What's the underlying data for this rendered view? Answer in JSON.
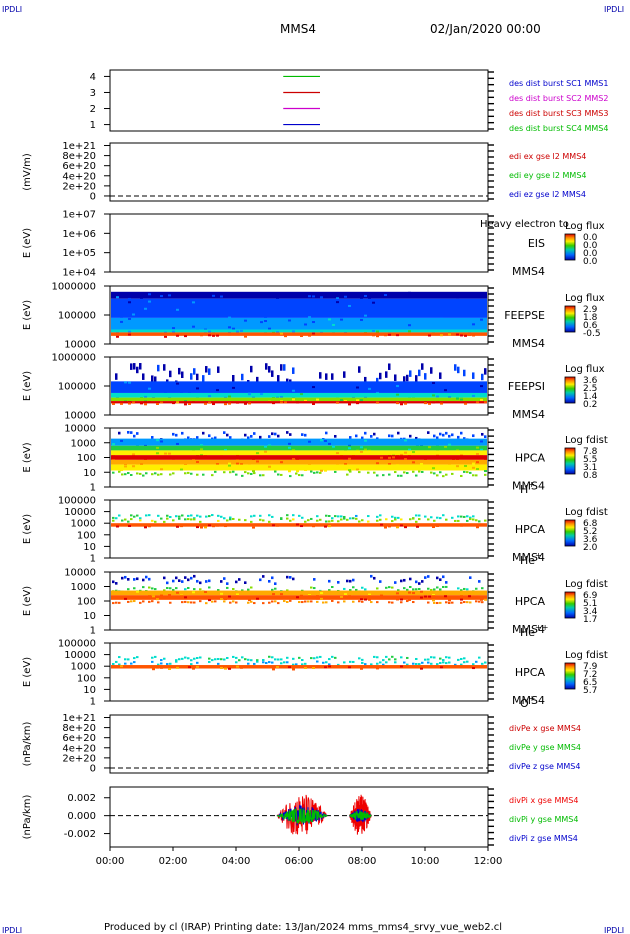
{
  "header": {
    "corner_tl": "IPDLI",
    "corner_tr": "IPDLI",
    "corner_bl": "IPDLI",
    "corner_br": "IPDLI",
    "spacecraft": "MMS4",
    "date": "02/Jan/2020 00:00"
  },
  "footer": {
    "text": "Produced by cl (IRAP)   Printing date: 13/Jan/2024   mms_mms4_srvy_vue_web2.cl"
  },
  "colors": {
    "mms1": "#0000cc",
    "mms2": "#cc00cc",
    "mms3": "#cc0000",
    "mms4": "#00bb00",
    "frame": "#000000"
  },
  "chart_data": [
    {
      "type": "line",
      "title": "",
      "ylabel": "",
      "yticks": [
        "4",
        "3",
        "2",
        "1"
      ],
      "ylim": [
        0.6,
        4.4
      ],
      "series": [
        {
          "name": "des dist burst SC1 MMS1",
          "color": "#0000cc",
          "y": 1,
          "x_range": [
            "05:30",
            "06:40"
          ]
        },
        {
          "name": "des dist burst SC2 MMS2",
          "color": "#cc00cc",
          "y": 2,
          "x_range": [
            "05:30",
            "06:40"
          ]
        },
        {
          "name": "des dist burst SC3 MMS3",
          "color": "#cc0000",
          "y": 3,
          "x_range": [
            "05:30",
            "06:40"
          ]
        },
        {
          "name": "des dist burst SC4 MMS4",
          "color": "#00bb00",
          "y": 4,
          "x_range": [
            "05:30",
            "06:40"
          ]
        }
      ]
    },
    {
      "type": "line",
      "ylabel": "(mV/m)",
      "yticks": [
        "1e+21",
        "8e+20",
        "6e+20",
        "4e+20",
        "2e+20",
        "0"
      ],
      "ylim": [
        -1e+20,
        1.05e+21
      ],
      "zero_line": true,
      "series": [
        {
          "name": "edi ex gse l2 MMS4",
          "color": "#cc0000"
        },
        {
          "name": "edi ey gse l2 MMS4",
          "color": "#00bb00"
        },
        {
          "name": "edi ez gse l2 MMS4",
          "color": "#0000cc"
        }
      ]
    },
    {
      "type": "heatmap",
      "ylabel": "E (eV)",
      "yticks": [
        "1e+07",
        "1e+06",
        "1e+05",
        "1e+04"
      ],
      "instrument": "EIS",
      "instrument_sub": "MMS4",
      "overlay_text": "Heavy electron to",
      "colorbar": {
        "title": "Log flux",
        "ticks": [
          "0.0",
          "0.0",
          "0.0",
          "0.0"
        ]
      },
      "empty": true
    },
    {
      "type": "heatmap",
      "ylabel": "E (eV)",
      "yticks": [
        "1000000",
        "100000",
        "10000"
      ],
      "instrument": "FEEPSE",
      "instrument_sub": "MMS4",
      "colorbar": {
        "title": "Log flux",
        "ticks": [
          "2.9",
          "1.8",
          "0.6",
          "-0.5"
        ]
      },
      "bands": [
        {
          "from": 0.1,
          "to": 0.22,
          "level": 0.05
        },
        {
          "from": 0.22,
          "to": 0.55,
          "level": 0.12
        },
        {
          "from": 0.55,
          "to": 0.75,
          "level": 0.18
        },
        {
          "from": 0.75,
          "to": 0.8,
          "level": 0.3
        },
        {
          "from": 0.8,
          "to": 0.86,
          "level": 0.92
        }
      ]
    },
    {
      "type": "heatmap",
      "ylabel": "E (eV)",
      "yticks": [
        "1000000",
        "100000",
        "10000"
      ],
      "instrument": "FEEPSI",
      "instrument_sub": "MMS4",
      "colorbar": {
        "title": "Log flux",
        "ticks": [
          "3.6",
          "2.5",
          "1.4",
          "0.2"
        ]
      },
      "bands": [
        {
          "from": 0.1,
          "to": 0.42,
          "level": 0.02,
          "sparse": true
        },
        {
          "from": 0.42,
          "to": 0.62,
          "level": 0.12
        },
        {
          "from": 0.62,
          "to": 0.7,
          "level": 0.32
        },
        {
          "from": 0.7,
          "to": 0.76,
          "level": 0.55
        },
        {
          "from": 0.76,
          "to": 0.8,
          "level": 0.95
        }
      ]
    },
    {
      "type": "heatmap",
      "ylabel": "E (eV)",
      "yticks": [
        "10000",
        "1000",
        "100",
        "10",
        "1"
      ],
      "instrument": "HPCA",
      "instrument_sub": "MMS4",
      "species": "H",
      "species_sup": "+",
      "colorbar": {
        "title": "Log fdist",
        "ticks": [
          "7.8",
          "5.5",
          "3.1",
          "0.8"
        ]
      },
      "bands": [
        {
          "from": 0.05,
          "to": 0.18,
          "level": 0.08,
          "sparse": true
        },
        {
          "from": 0.18,
          "to": 0.3,
          "level": 0.25
        },
        {
          "from": 0.3,
          "to": 0.38,
          "level": 0.45
        },
        {
          "from": 0.38,
          "to": 0.46,
          "level": 0.7
        },
        {
          "from": 0.46,
          "to": 0.54,
          "level": 0.95
        },
        {
          "from": 0.54,
          "to": 0.62,
          "level": 0.8
        },
        {
          "from": 0.62,
          "to": 0.72,
          "level": 0.62
        },
        {
          "from": 0.72,
          "to": 0.8,
          "level": 0.5,
          "sparse": true
        }
      ]
    },
    {
      "type": "heatmap",
      "ylabel": "E (eV)",
      "yticks": [
        "100000",
        "10000",
        "1000",
        "100",
        "10",
        "1"
      ],
      "instrument": "HPCA",
      "instrument_sub": "MMS4",
      "species": "He",
      "species_sup": "+",
      "colorbar": {
        "title": "Log fdist",
        "ticks": [
          "6.8",
          "5.2",
          "3.6",
          "2.0"
        ]
      },
      "bands": [
        {
          "from": 0.24,
          "to": 0.3,
          "level": 0.35,
          "sparse": true
        },
        {
          "from": 0.3,
          "to": 0.36,
          "level": 0.55,
          "sparse": true
        },
        {
          "from": 0.4,
          "to": 0.46,
          "level": 0.92
        }
      ]
    },
    {
      "type": "heatmap",
      "ylabel": "E (eV)",
      "yticks": [
        "10000",
        "1000",
        "100",
        "10",
        "1"
      ],
      "instrument": "HPCA",
      "instrument_sub": "MMS4",
      "species": "He",
      "species_sup": "++",
      "colorbar": {
        "title": "Log fdist",
        "ticks": [
          "6.9",
          "5.1",
          "3.4",
          "1.7"
        ]
      },
      "bands": [
        {
          "from": 0.05,
          "to": 0.18,
          "level": 0.08,
          "sparse": true
        },
        {
          "from": 0.24,
          "to": 0.32,
          "level": 0.45,
          "sparse": true
        },
        {
          "from": 0.32,
          "to": 0.4,
          "level": 0.78
        },
        {
          "from": 0.4,
          "to": 0.48,
          "level": 0.9
        },
        {
          "from": 0.48,
          "to": 0.52,
          "level": 0.85,
          "sparse": true
        }
      ]
    },
    {
      "type": "heatmap",
      "ylabel": "E (eV)",
      "yticks": [
        "100000",
        "10000",
        "1000",
        "100",
        "10",
        "1"
      ],
      "instrument": "HPCA",
      "instrument_sub": "MMS4",
      "species": "O",
      "species_sup": "+",
      "colorbar": {
        "title": "Log fdist",
        "ticks": [
          "7.9",
          "7.2",
          "6.5",
          "5.7"
        ]
      },
      "bands": [
        {
          "from": 0.22,
          "to": 0.28,
          "level": 0.35,
          "sparse": true
        },
        {
          "from": 0.3,
          "to": 0.36,
          "level": 0.3,
          "sparse": true
        },
        {
          "from": 0.38,
          "to": 0.44,
          "level": 0.88
        }
      ]
    },
    {
      "type": "line",
      "ylabel": "(nPa/km)",
      "yticks": [
        "1e+21",
        "8e+20",
        "6e+20",
        "4e+20",
        "2e+20",
        "0"
      ],
      "ylim": [
        -1e+20,
        1.05e+21
      ],
      "zero_line": true,
      "series": [
        {
          "name": "divPe x gse MMS4",
          "color": "#cc0000"
        },
        {
          "name": "divPe y gse MMS4",
          "color": "#00bb00"
        },
        {
          "name": "divPe z gse MMS4",
          "color": "#0000cc"
        }
      ]
    },
    {
      "type": "line",
      "ylabel": "(nPa/km)",
      "yticks": [
        "0.002",
        "0.000",
        "-0.002"
      ],
      "ylim": [
        -0.0035,
        0.0032
      ],
      "zero_line": true,
      "x": [
        "00:00",
        "02:00",
        "04:00",
        "06:00",
        "08:00",
        "10:00",
        "12:00"
      ],
      "xlim_hours": [
        0,
        12
      ],
      "series": [
        {
          "name": "divPi x gse MMS4",
          "color": "#ee0000"
        },
        {
          "name": "divPi y gse MMS4",
          "color": "#00bb00"
        },
        {
          "name": "divPi z gse MMS4",
          "color": "#0000cc"
        }
      ],
      "activity": [
        {
          "t_start": 5.3,
          "t_end": 6.9,
          "amp_x": 0.0025,
          "amp_y": 0.0009,
          "amp_z": 0.0012
        },
        {
          "t_start": 7.6,
          "t_end": 8.3,
          "amp_x": 0.0024,
          "amp_y": 0.0006,
          "amp_z": 0.0008
        }
      ]
    }
  ]
}
